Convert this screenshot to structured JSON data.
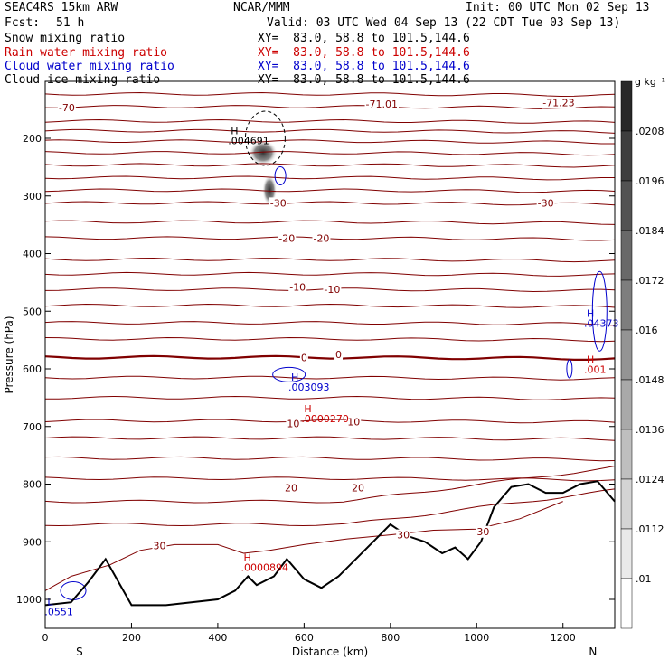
{
  "header": {
    "model": "SEAC4RS 15km ARW",
    "org": "NCAR/MMM",
    "init": "Init: 00 UTC Mon 02 Sep 13",
    "fcst_label": "Fcst:",
    "fcst_value": "51 h",
    "valid": "Valid: 03 UTC Wed 04 Sep 13 (22 CDT Tue 03 Sep 13)",
    "fields": [
      {
        "label": "Snow mixing ratio",
        "xy": "XY=  83.0, 58.8 to 101.5,144.6",
        "color": "#000000"
      },
      {
        "label": "Rain water mixing ratio",
        "xy": "XY=  83.0, 58.8 to 101.5,144.6",
        "color": "#cc0000"
      },
      {
        "label": "Cloud water mixing ratio",
        "xy": "XY=  83.0, 58.8 to 101.5,144.6",
        "color": "#0000cc"
      },
      {
        "label": "Cloud ice mixing ratio",
        "xy": "XY=  83.0, 58.8 to 101.5,144.6",
        "color": "#000000"
      }
    ]
  },
  "colorbar": {
    "unit": "g kg⁻¹",
    "labels": [
      ".0208",
      ".0196",
      ".0184",
      ".0172",
      ".016",
      ".0148",
      ".0136",
      ".0124",
      ".0112",
      ".01"
    ]
  },
  "chart_data": {
    "type": "cross-section contour",
    "xlabel": "Distance (km)",
    "ylabel": "Pressure (hPa)",
    "xlim": [
      0,
      1320
    ],
    "ylim": [
      1050,
      125
    ],
    "x_ticks": [
      "0",
      "200",
      "400",
      "600",
      "800",
      "1000",
      "1200"
    ],
    "y_ticks": [
      "200",
      "300",
      "400",
      "500",
      "600",
      "700",
      "800",
      "900",
      "1000"
    ],
    "end_labels": {
      "left": "S",
      "right": "N"
    },
    "temperature_isotherms_C": {
      "color": "#800000",
      "levels_labeled": [
        {
          "value": "-70",
          "x": 50,
          "p": 147
        },
        {
          "value": "-71.01",
          "x": 780,
          "p": 140
        },
        {
          "value": "-71.23",
          "x": 1190,
          "p": 138
        },
        {
          "value": "-30",
          "x": 540,
          "p": 312
        },
        {
          "value": "-30",
          "x": 1160,
          "p": 312
        },
        {
          "value": "-20",
          "x": 560,
          "p": 373
        },
        {
          "value": "-20",
          "x": 640,
          "p": 373
        },
        {
          "value": "-10",
          "x": 585,
          "p": 458
        },
        {
          "value": "-10",
          "x": 665,
          "p": 462
        },
        {
          "value": "0",
          "x": 600,
          "p": 580
        },
        {
          "value": "0",
          "x": 680,
          "p": 575
        },
        {
          "value": "10",
          "x": 575,
          "p": 695
        },
        {
          "value": "10",
          "x": 715,
          "p": 692
        },
        {
          "value": "20",
          "x": 570,
          "p": 806
        },
        {
          "value": "20",
          "x": 725,
          "p": 806
        },
        {
          "value": "30",
          "x": 265,
          "p": 907
        },
        {
          "value": "30",
          "x": 830,
          "p": 888
        },
        {
          "value": "30",
          "x": 1015,
          "p": 882
        }
      ]
    },
    "extrema": [
      {
        "kind": "H",
        "value": ".004691",
        "x": 430,
        "p": 193,
        "color": "#000000"
      },
      {
        "kind": "H",
        "value": ".003093",
        "x": 570,
        "p": 620,
        "color": "#0000cc"
      },
      {
        "kind": "H",
        "value": ".0000270",
        "x": 600,
        "p": 675,
        "color": "#cc0000"
      },
      {
        "kind": "H",
        "value": ".0000894",
        "x": 460,
        "p": 933,
        "color": "#cc0000"
      },
      {
        "kind": "H",
        "value": ".04373",
        "x": 1255,
        "p": 510,
        "color": "#0000cc"
      },
      {
        "kind": "H",
        "value": ".001",
        "x": 1255,
        "p": 590,
        "color": "#cc0000"
      },
      {
        "kind": "L",
        "value": ".0551",
        "x": 5,
        "p": 1010,
        "color": "#0000cc"
      }
    ],
    "shading": {
      "field": "snow/ice mixing ratio",
      "max_locations_km": [
        500,
        520
      ],
      "max_pressure_hPa": [
        225,
        290
      ]
    },
    "terrain": {
      "color": "#000000",
      "x_km": [
        0,
        60,
        100,
        140,
        200,
        280,
        400,
        440,
        470,
        490,
        530,
        560,
        600,
        640,
        680,
        720,
        760,
        800,
        840,
        880,
        920,
        950,
        980,
        1010,
        1040,
        1080,
        1120,
        1160,
        1200,
        1240,
        1280,
        1320
      ],
      "p_hPa": [
        1010,
        1005,
        970,
        930,
        1010,
        1010,
        1000,
        985,
        960,
        975,
        960,
        930,
        965,
        980,
        960,
        930,
        900,
        870,
        890,
        900,
        920,
        910,
        930,
        900,
        840,
        805,
        800,
        815,
        815,
        800,
        795,
        830
      ]
    }
  }
}
